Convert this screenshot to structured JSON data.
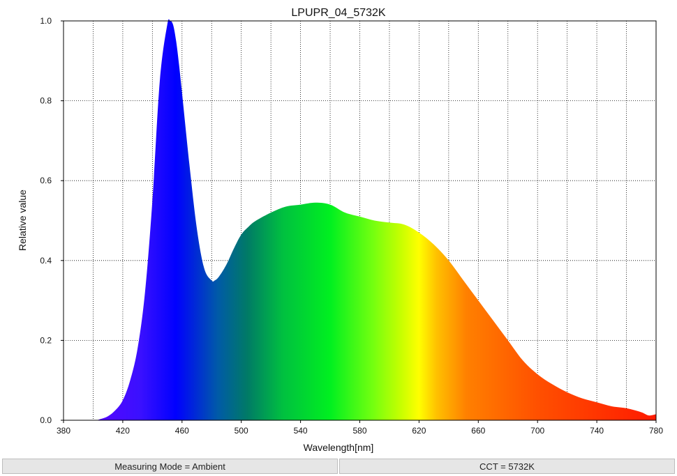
{
  "chart_data": {
    "type": "area",
    "title": "LPUPR_04_5732K",
    "xlabel": "Wavelength[nm]",
    "ylabel": "Relative value",
    "xlim": [
      380,
      780
    ],
    "ylim": [
      0,
      1.0
    ],
    "x_ticks": [
      "380",
      "420",
      "460",
      "500",
      "540",
      "580",
      "620",
      "660",
      "700",
      "740",
      "780"
    ],
    "y_ticks": [
      "0.0",
      "0.2",
      "0.4",
      "0.6",
      "0.8",
      "1.0"
    ],
    "grid": true,
    "x": [
      380,
      400,
      405,
      410,
      415,
      420,
      425,
      430,
      435,
      440,
      445,
      450,
      452,
      454,
      456,
      458,
      460,
      465,
      470,
      475,
      480,
      482,
      485,
      490,
      495,
      500,
      505,
      510,
      520,
      530,
      540,
      550,
      560,
      570,
      580,
      590,
      600,
      610,
      620,
      630,
      640,
      650,
      660,
      670,
      680,
      690,
      700,
      710,
      720,
      730,
      740,
      750,
      760,
      770,
      775,
      780
    ],
    "values": [
      0,
      0,
      0.003,
      0.01,
      0.025,
      0.05,
      0.1,
      0.18,
      0.32,
      0.55,
      0.85,
      0.99,
      1.0,
      0.99,
      0.95,
      0.89,
      0.82,
      0.64,
      0.48,
      0.38,
      0.35,
      0.35,
      0.36,
      0.39,
      0.43,
      0.465,
      0.485,
      0.5,
      0.52,
      0.535,
      0.54,
      0.545,
      0.54,
      0.52,
      0.51,
      0.5,
      0.495,
      0.49,
      0.47,
      0.44,
      0.4,
      0.35,
      0.3,
      0.25,
      0.2,
      0.15,
      0.115,
      0.09,
      0.07,
      0.055,
      0.045,
      0.035,
      0.03,
      0.02,
      0.012,
      0.015
    ]
  },
  "footer": {
    "left": "Measuring Mode = Ambient",
    "right": "CCT = 5732K"
  }
}
